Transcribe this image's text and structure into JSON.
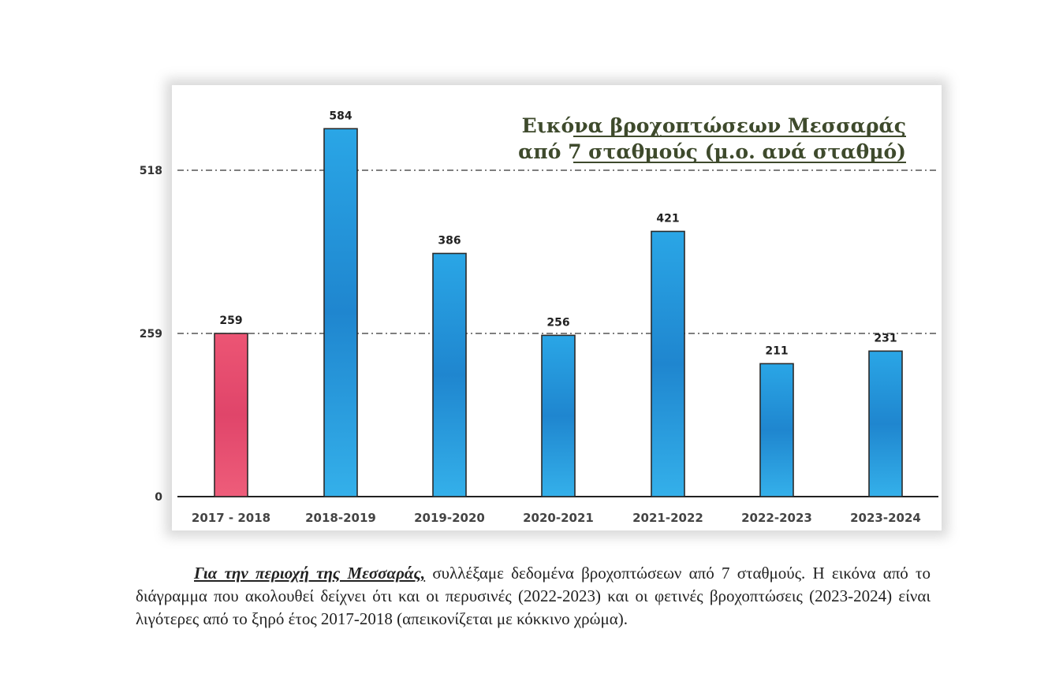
{
  "chart_data": {
    "type": "bar",
    "title": [
      "Εικόνα βροχοπτώσεων Μεσσαράς",
      "από 7 σταθμούς (μ.ο. ανά σταθμό)"
    ],
    "categories": [
      "2017 - 2018",
      "2018-2019",
      "2019-2020",
      "2020-2021",
      "2021-2022",
      "2022-2023",
      "2023-2024"
    ],
    "values": [
      259,
      584,
      386,
      256,
      421,
      211,
      231
    ],
    "data_labels": [
      "259",
      "584",
      "386",
      "256",
      "421",
      "211",
      "231"
    ],
    "highlight_index": 0,
    "colors": {
      "default": "#2a9ee0",
      "highlight": "#ea4f6f"
    },
    "yticks": [
      0,
      259,
      518
    ],
    "ytick_labels": [
      "0",
      "259",
      "518"
    ],
    "ylim": [
      0,
      600
    ],
    "grid": "dash-dot at 259 and 518",
    "xlabel": "",
    "ylabel": ""
  },
  "caption": {
    "lead": "Για την περιοχή της Μεσσαράς,",
    "text": " συλλέξαμε δεδομένα βροχοπτώσεων από 7 σταθμούς.  Η εικόνα από το διάγραμμα που ακολουθεί δείχνει ότι και οι περυσινές (2022-2023) και οι φετινές βροχοπτώσεις (2023-2024) είναι λιγότερες από το ξηρό έτος 2017-2018 (απεικονίζεται με κόκκινο χρώμα)."
  }
}
